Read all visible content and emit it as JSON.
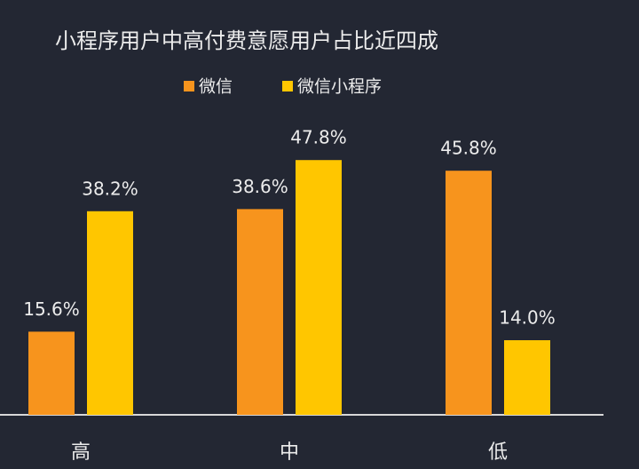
{
  "chart_data": {
    "type": "bar",
    "title": "小程序用户中高付费意愿用户占比近四成",
    "categories": [
      "高",
      "中",
      "低"
    ],
    "series": [
      {
        "name": "微信",
        "color": "#f7941d",
        "values": [
          15.6,
          38.6,
          45.8
        ],
        "value_labels": [
          "15.6%",
          "38.6%",
          "45.8%"
        ]
      },
      {
        "name": "微信小程序",
        "color": "#ffc600",
        "values": [
          38.2,
          47.8,
          14.0
        ],
        "value_labels": [
          "38.2%",
          "47.8%",
          "14.0%"
        ]
      }
    ]
  }
}
